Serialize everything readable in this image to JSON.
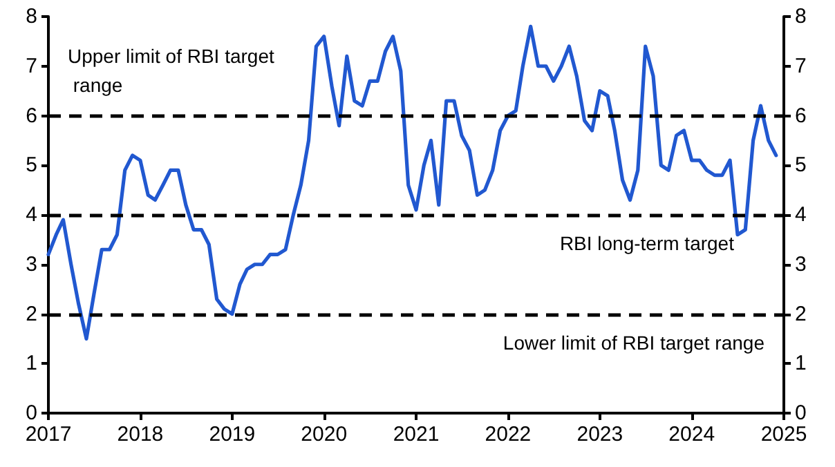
{
  "chart_data": {
    "type": "line",
    "x": [
      "2017-01",
      "2017-02",
      "2017-03",
      "2017-04",
      "2017-05",
      "2017-06",
      "2017-07",
      "2017-08",
      "2017-09",
      "2017-10",
      "2017-11",
      "2017-12",
      "2018-01",
      "2018-02",
      "2018-03",
      "2018-04",
      "2018-05",
      "2018-06",
      "2018-07",
      "2018-08",
      "2018-09",
      "2018-10",
      "2018-11",
      "2018-12",
      "2019-01",
      "2019-02",
      "2019-03",
      "2019-04",
      "2019-05",
      "2019-06",
      "2019-07",
      "2019-08",
      "2019-09",
      "2019-10",
      "2019-11",
      "2019-12",
      "2020-01",
      "2020-02",
      "2020-03",
      "2020-04",
      "2020-05",
      "2020-06",
      "2020-07",
      "2020-08",
      "2020-09",
      "2020-10",
      "2020-11",
      "2020-12",
      "2021-01",
      "2021-02",
      "2021-03",
      "2021-04",
      "2021-05",
      "2021-06",
      "2021-07",
      "2021-08",
      "2021-09",
      "2021-10",
      "2021-11",
      "2021-12",
      "2022-01",
      "2022-02",
      "2022-03",
      "2022-04",
      "2022-05",
      "2022-06",
      "2022-07",
      "2022-08",
      "2022-09",
      "2022-10",
      "2022-11",
      "2022-12",
      "2023-01",
      "2023-02",
      "2023-03",
      "2023-04",
      "2023-05",
      "2023-06",
      "2023-07",
      "2023-08",
      "2023-09",
      "2023-10",
      "2023-11",
      "2023-12",
      "2024-01",
      "2024-02",
      "2024-03",
      "2024-04",
      "2024-05",
      "2024-06",
      "2024-07",
      "2024-08",
      "2024-09",
      "2024-10",
      "2024-11",
      "2024-12"
    ],
    "series": [
      {
        "color": "#2158d0",
        "values": [
          3.2,
          3.6,
          3.9,
          3.0,
          2.2,
          1.5,
          2.4,
          3.3,
          3.3,
          3.6,
          4.9,
          5.2,
          5.1,
          4.4,
          4.3,
          4.6,
          4.9,
          4.9,
          4.2,
          3.7,
          3.7,
          3.4,
          2.3,
          2.1,
          2.0,
          2.6,
          2.9,
          3.0,
          3.0,
          3.2,
          3.2,
          3.3,
          4.0,
          4.6,
          5.5,
          7.4,
          7.6,
          6.6,
          5.8,
          7.2,
          6.3,
          6.2,
          6.7,
          6.7,
          7.3,
          7.6,
          6.9,
          4.6,
          4.1,
          5.0,
          5.5,
          4.2,
          6.3,
          6.3,
          5.6,
          5.3,
          4.4,
          4.5,
          4.9,
          5.7,
          6.0,
          6.1,
          7.0,
          7.8,
          7.0,
          7.0,
          6.7,
          7.0,
          7.4,
          6.8,
          5.9,
          5.7,
          6.5,
          6.4,
          5.7,
          4.7,
          4.3,
          4.9,
          7.4,
          6.8,
          5.0,
          4.9,
          5.6,
          5.7,
          5.1,
          5.1,
          4.9,
          4.8,
          4.8,
          5.1,
          3.6,
          3.7,
          5.5,
          6.2,
          5.5,
          5.2
        ]
      }
    ],
    "xlim": [
      "2017",
      "2025"
    ],
    "xticks": [
      "2017",
      "2018",
      "2019",
      "2020",
      "2021",
      "2022",
      "2023",
      "2024",
      "2025"
    ],
    "ylim": [
      0,
      8
    ],
    "yticks": [
      0,
      1,
      2,
      3,
      4,
      5,
      6,
      7,
      8
    ],
    "y2lim": [
      0,
      8
    ],
    "y2ticks": [
      0,
      1,
      2,
      3,
      4,
      5,
      6,
      7,
      8
    ],
    "grid": false,
    "marker": "none",
    "line_style": "solid",
    "ref_lines": [
      {
        "axis": "y",
        "value": 6,
        "label": "Upper limit of RBI target range",
        "color": "#000000",
        "line_style": "dashed"
      },
      {
        "axis": "y",
        "value": 4,
        "label": "RBI long-term target",
        "color": "#000000",
        "line_style": "dashed"
      },
      {
        "axis": "y",
        "value": 2,
        "label": "Lower limit of RBI target range",
        "color": "#000000",
        "line_style": "dashed"
      }
    ]
  }
}
